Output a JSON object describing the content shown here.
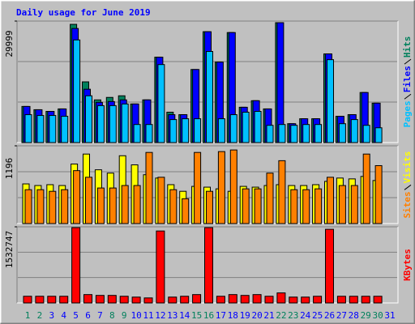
{
  "chart_data": [
    {
      "type": "grouped-bar",
      "title": "Daily usage for June 2019",
      "ylim": [
        0,
        29999
      ],
      "yticks": [
        29999
      ],
      "series": [
        {
          "name": "Hits",
          "color": "#00805c",
          "values": [
            8920,
            8110,
            7700,
            8310,
            29190,
            14990,
            10540,
            11150,
            11550,
            9530,
            10540,
            21080,
            7500,
            6890,
            18040,
            27370,
            19860,
            27160,
            8720,
            10340,
            8310,
            29600,
            4660,
            5880,
            5880,
            21890,
            6490,
            6890,
            12360,
            9730,
            0
          ]
        },
        {
          "name": "Files",
          "color": "#0000ff",
          "values": [
            8920,
            8110,
            7700,
            8310,
            28170,
            13170,
            9930,
            10130,
            10540,
            9530,
            10540,
            21080,
            6890,
            6890,
            18040,
            27370,
            19860,
            27160,
            8720,
            10340,
            8310,
            29600,
            4660,
            5880,
            5880,
            21890,
            6490,
            6890,
            12360,
            9730,
            0
          ]
        },
        {
          "name": "Pages",
          "color": "#00c0ff",
          "values": [
            6890,
            6690,
            6690,
            6490,
            25340,
            11550,
            9120,
            9120,
            9530,
            4460,
            4460,
            19260,
            5680,
            5880,
            5880,
            22500,
            5880,
            6890,
            7500,
            7700,
            4260,
            4460,
            4260,
            4460,
            4460,
            20470,
            4660,
            5680,
            4260,
            3650,
            0
          ]
        }
      ]
    },
    {
      "type": "grouped-bar",
      "ylim": [
        0,
        1196
      ],
      "yticks": [
        1196
      ],
      "series": [
        {
          "name": "Visits",
          "color": "#ffff00",
          "values": [
            610,
            585,
            598,
            585,
            916,
            1069,
            827,
            776,
            1043,
            903,
            751,
            700,
            598,
            496,
            572,
            560,
            534,
            496,
            572,
            560,
            585,
            598,
            585,
            585,
            598,
            649,
            700,
            687,
            725,
            662,
            0
          ]
        },
        {
          "name": "Sites",
          "color": "#ff8000",
          "values": [
            521,
            521,
            496,
            521,
            814,
            712,
            547,
            547,
            585,
            585,
            1094,
            712,
            521,
            382,
            1094,
            496,
            1107,
            1132,
            534,
            534,
            776,
            967,
            521,
            521,
            534,
            712,
            585,
            585,
            1069,
            891,
            0
          ]
        }
      ]
    },
    {
      "type": "bar",
      "ylim": [
        0,
        1532747
      ],
      "yticks": [
        1532747
      ],
      "categories": [
        "1",
        "2",
        "3",
        "4",
        "5",
        "6",
        "7",
        "8",
        "9",
        "10",
        "11",
        "12",
        "13",
        "14",
        "15",
        "16",
        "17",
        "18",
        "19",
        "20",
        "21",
        "22",
        "23",
        "24",
        "25",
        "26",
        "27",
        "28",
        "29",
        "30",
        "31"
      ],
      "category_colors": [
        "#00805c",
        "#00805c",
        "#0000ff",
        "#0000ff",
        "#0000ff",
        "#0000ff",
        "#0000ff",
        "#00805c",
        "#00805c",
        "#0000ff",
        "#0000ff",
        "#0000ff",
        "#0000ff",
        "#0000ff",
        "#00805c",
        "#00805c",
        "#0000ff",
        "#0000ff",
        "#0000ff",
        "#0000ff",
        "#0000ff",
        "#00805c",
        "#00805c",
        "#0000ff",
        "#0000ff",
        "#0000ff",
        "#0000ff",
        "#0000ff",
        "#00805c",
        "#00805c",
        "#0000ff"
      ],
      "series": [
        {
          "name": "KBytes",
          "color": "#ff0000",
          "values": [
            134700,
            134700,
            134700,
            134700,
            1515900,
            168400,
            151600,
            151600,
            134700,
            117900,
            101100,
            1448500,
            117900,
            134700,
            168400,
            1515900,
            134700,
            168400,
            151600,
            168400,
            134700,
            202100,
            117900,
            117900,
            134700,
            1482200,
            134700,
            134700,
            134700,
            134700,
            0
          ]
        }
      ]
    }
  ]
}
